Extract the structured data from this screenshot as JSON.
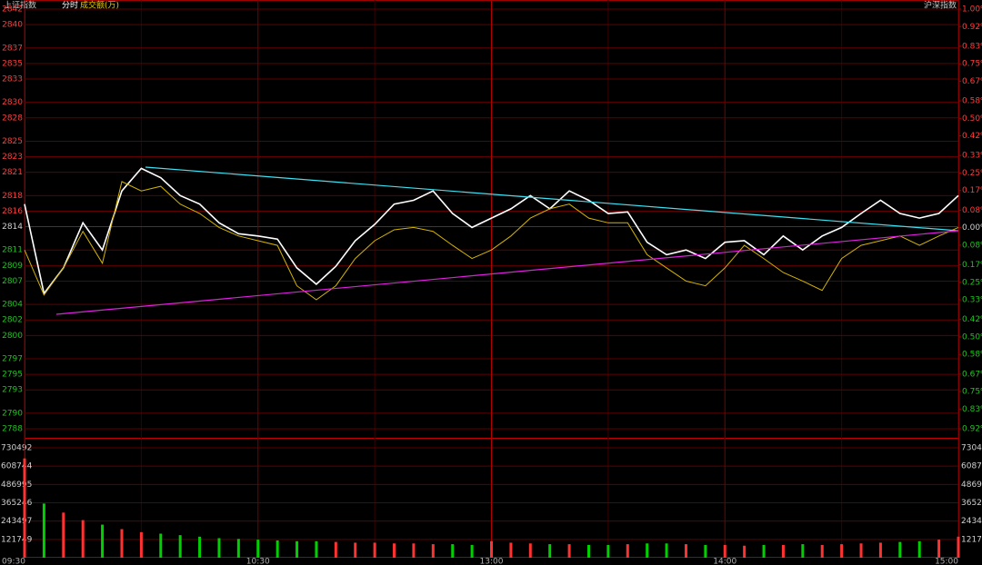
{
  "chart_data": [
    {
      "type": "line",
      "title": "上证指数",
      "subtitle": "分时",
      "annotation": "沪深指数",
      "x": [
        "09:30",
        "09:35",
        "09:40",
        "09:45",
        "09:50",
        "09:55",
        "10:00",
        "10:05",
        "10:10",
        "10:15",
        "10:20",
        "10:25",
        "10:30",
        "10:35",
        "10:40",
        "10:45",
        "10:50",
        "10:55",
        "11:00",
        "11:05",
        "11:10",
        "11:15",
        "11:20",
        "11:25",
        "11:30",
        "13:05",
        "13:10",
        "13:15",
        "13:20",
        "13:25",
        "13:30",
        "13:35",
        "13:40",
        "13:45",
        "13:50",
        "13:55",
        "14:00",
        "14:05",
        "14:10",
        "14:15",
        "14:20",
        "14:25",
        "14:30",
        "14:35",
        "14:40",
        "14:45",
        "14:50",
        "14:55",
        "15:00"
      ],
      "xlim": [
        "09:30",
        "15:00"
      ],
      "ylim": [
        2788,
        2842
      ],
      "yticks": [
        2842,
        2840,
        2837,
        2835,
        2833,
        2830,
        2828,
        2825,
        2823,
        2821,
        2818,
        2816,
        2814,
        2811,
        2809,
        2807,
        2804,
        2802,
        2800,
        2797,
        2795,
        2793,
        2790,
        2788
      ],
      "y2lim": [
        -0.92,
        1.0
      ],
      "y2ticks": [
        {
          "value": 1.0,
          "label": "1.00%"
        },
        {
          "value": 0.92,
          "label": "0.92%"
        },
        {
          "value": 0.83,
          "label": "0.83%"
        },
        {
          "value": 0.75,
          "label": "0.75%"
        },
        {
          "value": 0.67,
          "label": "0.67%"
        },
        {
          "value": 0.58,
          "label": "0.58%"
        },
        {
          "value": 0.5,
          "label": "0.50%"
        },
        {
          "value": 0.42,
          "label": "0.42%"
        },
        {
          "value": 0.33,
          "label": "0.33%"
        },
        {
          "value": 0.25,
          "label": "0.25%"
        },
        {
          "value": 0.17,
          "label": "0.17%"
        },
        {
          "value": 0.08,
          "label": "0.08%"
        },
        {
          "value": 0,
          "label": "0.00%"
        },
        {
          "value": -0.08,
          "label": "0.08%"
        },
        {
          "value": -0.17,
          "label": "0.17%"
        },
        {
          "value": -0.25,
          "label": "0.25%"
        },
        {
          "value": -0.33,
          "label": "0.33%"
        },
        {
          "value": -0.42,
          "label": "0.42%"
        },
        {
          "value": -0.5,
          "label": "0.50%"
        },
        {
          "value": -0.58,
          "label": "0.58%"
        },
        {
          "value": -0.67,
          "label": "0.67%"
        },
        {
          "value": -0.75,
          "label": "0.75%"
        },
        {
          "value": -0.83,
          "label": "0.83%"
        },
        {
          "value": -0.92,
          "label": "0.92%"
        }
      ],
      "series": [
        {
          "color": "#ffffff",
          "values": [
            2816.9,
            2805.4,
            2808.7,
            2814.5,
            2811.0,
            2818.6,
            2821.5,
            2820.3,
            2818.0,
            2816.9,
            2814.5,
            2813.1,
            2812.8,
            2812.4,
            2808.7,
            2806.6,
            2808.9,
            2812.2,
            2814.3,
            2816.9,
            2817.4,
            2818.6,
            2815.7,
            2813.9,
            2815.1,
            2816.3,
            2818.0,
            2816.3,
            2818.6,
            2817.4,
            2815.7,
            2815.9,
            2812.0,
            2810.4,
            2811.0,
            2809.9,
            2812.0,
            2812.2,
            2810.4,
            2812.8,
            2811.0,
            2812.8,
            2813.9,
            2815.7,
            2817.4,
            2815.7,
            2815.1,
            2815.7,
            2818.0
          ]
        },
        {
          "color": "#d4b400",
          "values": [
            2811.0,
            2805.2,
            2808.7,
            2813.4,
            2809.3,
            2819.8,
            2818.6,
            2819.2,
            2816.9,
            2815.7,
            2813.9,
            2812.8,
            2812.2,
            2811.6,
            2806.4,
            2804.6,
            2806.4,
            2809.9,
            2812.2,
            2813.6,
            2813.9,
            2813.4,
            2811.6,
            2809.9,
            2811.0,
            2812.8,
            2815.1,
            2816.3,
            2816.9,
            2815.1,
            2814.5,
            2814.5,
            2810.4,
            2808.7,
            2807.0,
            2806.4,
            2808.7,
            2811.6,
            2809.9,
            2808.1,
            2807.0,
            2805.8,
            2809.9,
            2811.6,
            2812.2,
            2812.8,
            2811.6,
            2812.8,
            2813.9
          ]
        }
      ]
    },
    {
      "type": "bar",
      "title": "成交额(万)",
      "x": [
        "09:30",
        "09:35",
        "09:40",
        "09:45",
        "09:50",
        "09:55",
        "10:00",
        "10:05",
        "10:10",
        "10:15",
        "10:20",
        "10:25",
        "10:30",
        "10:35",
        "10:40",
        "10:45",
        "10:50",
        "10:55",
        "11:00",
        "11:05",
        "11:10",
        "11:15",
        "11:20",
        "11:25",
        "11:30",
        "13:05",
        "13:10",
        "13:15",
        "13:20",
        "13:25",
        "13:30",
        "13:35",
        "13:40",
        "13:45",
        "13:50",
        "13:55",
        "14:00",
        "14:05",
        "14:10",
        "14:15",
        "14:20",
        "14:25",
        "14:30",
        "14:35",
        "14:40",
        "14:45",
        "14:50",
        "14:55",
        "15:00"
      ],
      "values": [
        660000,
        360000,
        300000,
        250000,
        220000,
        190000,
        170000,
        160000,
        150000,
        140000,
        130000,
        125000,
        120000,
        115000,
        110000,
        110000,
        105000,
        100000,
        100000,
        95000,
        95000,
        90000,
        90000,
        85000,
        110000,
        100000,
        95000,
        90000,
        90000,
        85000,
        85000,
        90000,
        95000,
        95000,
        90000,
        85000,
        85000,
        80000,
        85000,
        85000,
        90000,
        85000,
        90000,
        95000,
        100000,
        105000,
        110000,
        120000,
        140000
      ],
      "up_color": "#ff3232",
      "down_color": "#00d000",
      "ylim": [
        0,
        730492
      ],
      "yticks": [
        730492,
        608744,
        486995,
        365246,
        243497,
        121749
      ],
      "xlim": [
        "09:30",
        "15:00"
      ],
      "xticks": [
        "09:30",
        "10:30",
        "13:00",
        "14:00",
        "15:00"
      ]
    }
  ]
}
